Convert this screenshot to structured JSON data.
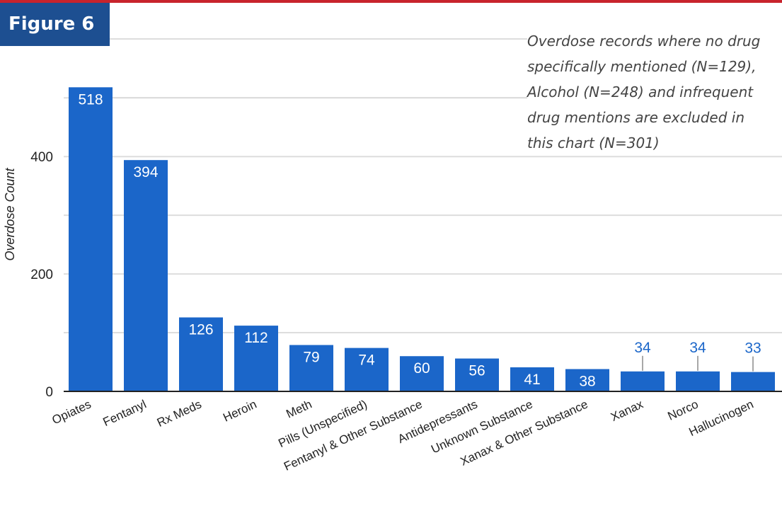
{
  "figure_label": "Figure 6",
  "note_lines": [
    "Overdose records where no drug",
    "specifically mentioned (N=129),",
    "Alcohol (N=248) and infrequent",
    "drug mentions are excluded in",
    "this chart (N=301)"
  ],
  "colors": {
    "bar": "#1b66c9",
    "inside_label": "#ffffff",
    "outside_label": "#1b66c9",
    "leader": "#8a8a8a",
    "grid": "#dddddd",
    "axis_text": "#222222",
    "top_rule": "#c8232c",
    "badge": "#1d4f91"
  },
  "chart_data": {
    "type": "bar",
    "title": "",
    "xlabel": "",
    "ylabel": "Overdose Count",
    "ylim": [
      0,
      520
    ],
    "yticks": [
      0,
      200,
      400
    ],
    "grid": true,
    "categories": [
      "Opiates",
      "Fentanyl",
      "Rx Meds",
      "Heroin",
      "Meth",
      "Pills (Unspecified)",
      "Fentanyl & Other Substance",
      "Antidepressants",
      "Unknown Substance",
      "Xanax & Other Substance",
      "Xanax",
      "Norco",
      "Hallucinogen"
    ],
    "values": [
      518,
      394,
      126,
      112,
      79,
      74,
      60,
      56,
      41,
      38,
      34,
      34,
      33
    ],
    "labels_outside": [
      false,
      false,
      false,
      false,
      false,
      false,
      false,
      false,
      false,
      false,
      true,
      true,
      true
    ]
  }
}
